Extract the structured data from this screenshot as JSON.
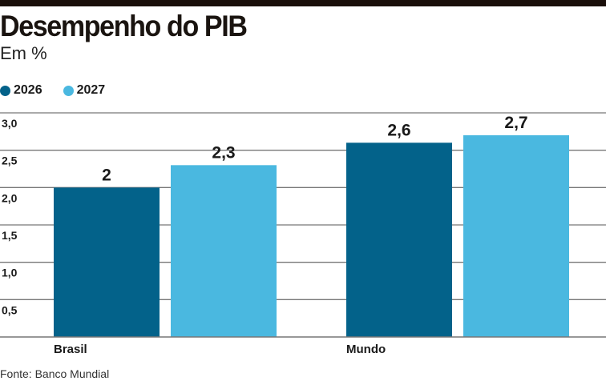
{
  "title": "Desempenho do PIB",
  "subtitle": "Em %",
  "source": "Fonte: Banco Mundial",
  "chart_data": {
    "type": "bar",
    "title": "Desempenho do PIB",
    "subtitle": "Em %",
    "categories": [
      "Brasil",
      "Mundo"
    ],
    "series": [
      {
        "name": "2026",
        "color": "#03628a",
        "values": [
          2,
          2.6
        ],
        "labels": [
          "2",
          "2,6"
        ]
      },
      {
        "name": "2027",
        "color": "#4ab8e0",
        "values": [
          2.3,
          2.7
        ],
        "labels": [
          "2,3",
          "2,7"
        ]
      }
    ],
    "yticks": [
      0.5,
      1.0,
      1.5,
      2.0,
      2.5,
      3.0
    ],
    "ytick_labels": [
      "0,5",
      "1,0",
      "1,5",
      "2,0",
      "2,5",
      "3,0"
    ],
    "ylim": [
      0,
      3
    ],
    "grid": true,
    "legend": "top-left"
  }
}
